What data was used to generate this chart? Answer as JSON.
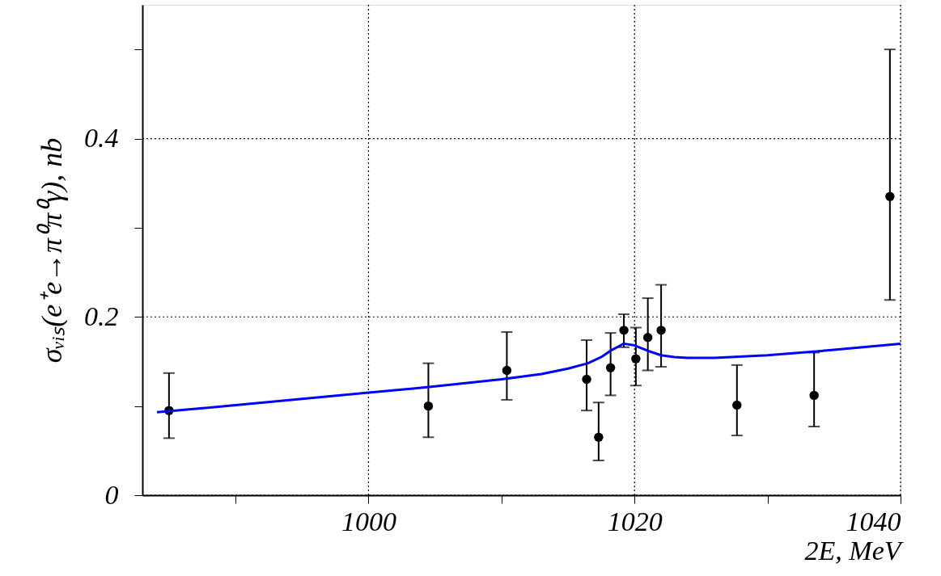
{
  "chart_data": {
    "type": "scatter",
    "xlabel": "2E, MeV",
    "ylabel": "σᵥᵢₛ(e⁺e→π⁰π⁰γ), nb",
    "xlim": [
      983,
      1040
    ],
    "ylim": [
      0,
      0.55
    ],
    "xticks": [
      {
        "value": 990,
        "label": null
      },
      1000,
      {
        "value": 1010,
        "label": null
      },
      1020,
      {
        "value": 1030,
        "label": null
      },
      1040
    ],
    "yticks": [
      0,
      {
        "value": 0.1,
        "label": null
      },
      0.2,
      {
        "value": 0.3,
        "label": null
      },
      0.4,
      {
        "value": 0.5,
        "label": null
      }
    ],
    "grid": true,
    "series": [
      {
        "color": "#000000",
        "marker": "circle",
        "x": [
          985.0,
          1004.5,
          1010.4,
          1016.4,
          1017.3,
          1018.2,
          1019.2,
          1020.1,
          1021.0,
          1022.0,
          1027.7,
          1033.5,
          1039.2
        ],
        "values": [
          0.095,
          0.1,
          0.14,
          0.13,
          0.065,
          0.143,
          0.185,
          0.153,
          0.177,
          0.185,
          0.101,
          0.112,
          0.335
        ],
        "errors": [
          [
            0.064,
            0.137
          ],
          [
            0.065,
            0.148
          ],
          [
            0.107,
            0.183
          ],
          [
            0.095,
            0.174
          ],
          [
            0.039,
            0.104
          ],
          [
            0.112,
            0.182
          ],
          [
            0.166,
            0.203
          ],
          [
            0.123,
            0.188
          ],
          [
            0.14,
            0.221
          ],
          [
            0.144,
            0.236
          ],
          [
            0.067,
            0.146
          ],
          [
            0.077,
            0.16
          ],
          [
            0.219,
            0.5
          ]
        ]
      },
      {
        "type": "line",
        "color": "#0000ff",
        "line_style": "solid",
        "marker": "none",
        "x": [
          984.1,
          990,
          1000,
          1005,
          1010,
          1013,
          1015,
          1016.5,
          1017.5,
          1018.3,
          1019.2,
          1020,
          1021,
          1022,
          1023,
          1024,
          1026,
          1030,
          1035,
          1040
        ],
        "values": [
          0.093,
          0.101,
          0.115,
          0.122,
          0.13,
          0.136,
          0.142,
          0.148,
          0.155,
          0.163,
          0.17,
          0.168,
          0.162,
          0.157,
          0.155,
          0.154,
          0.154,
          0.157,
          0.163,
          0.17
        ]
      }
    ]
  }
}
